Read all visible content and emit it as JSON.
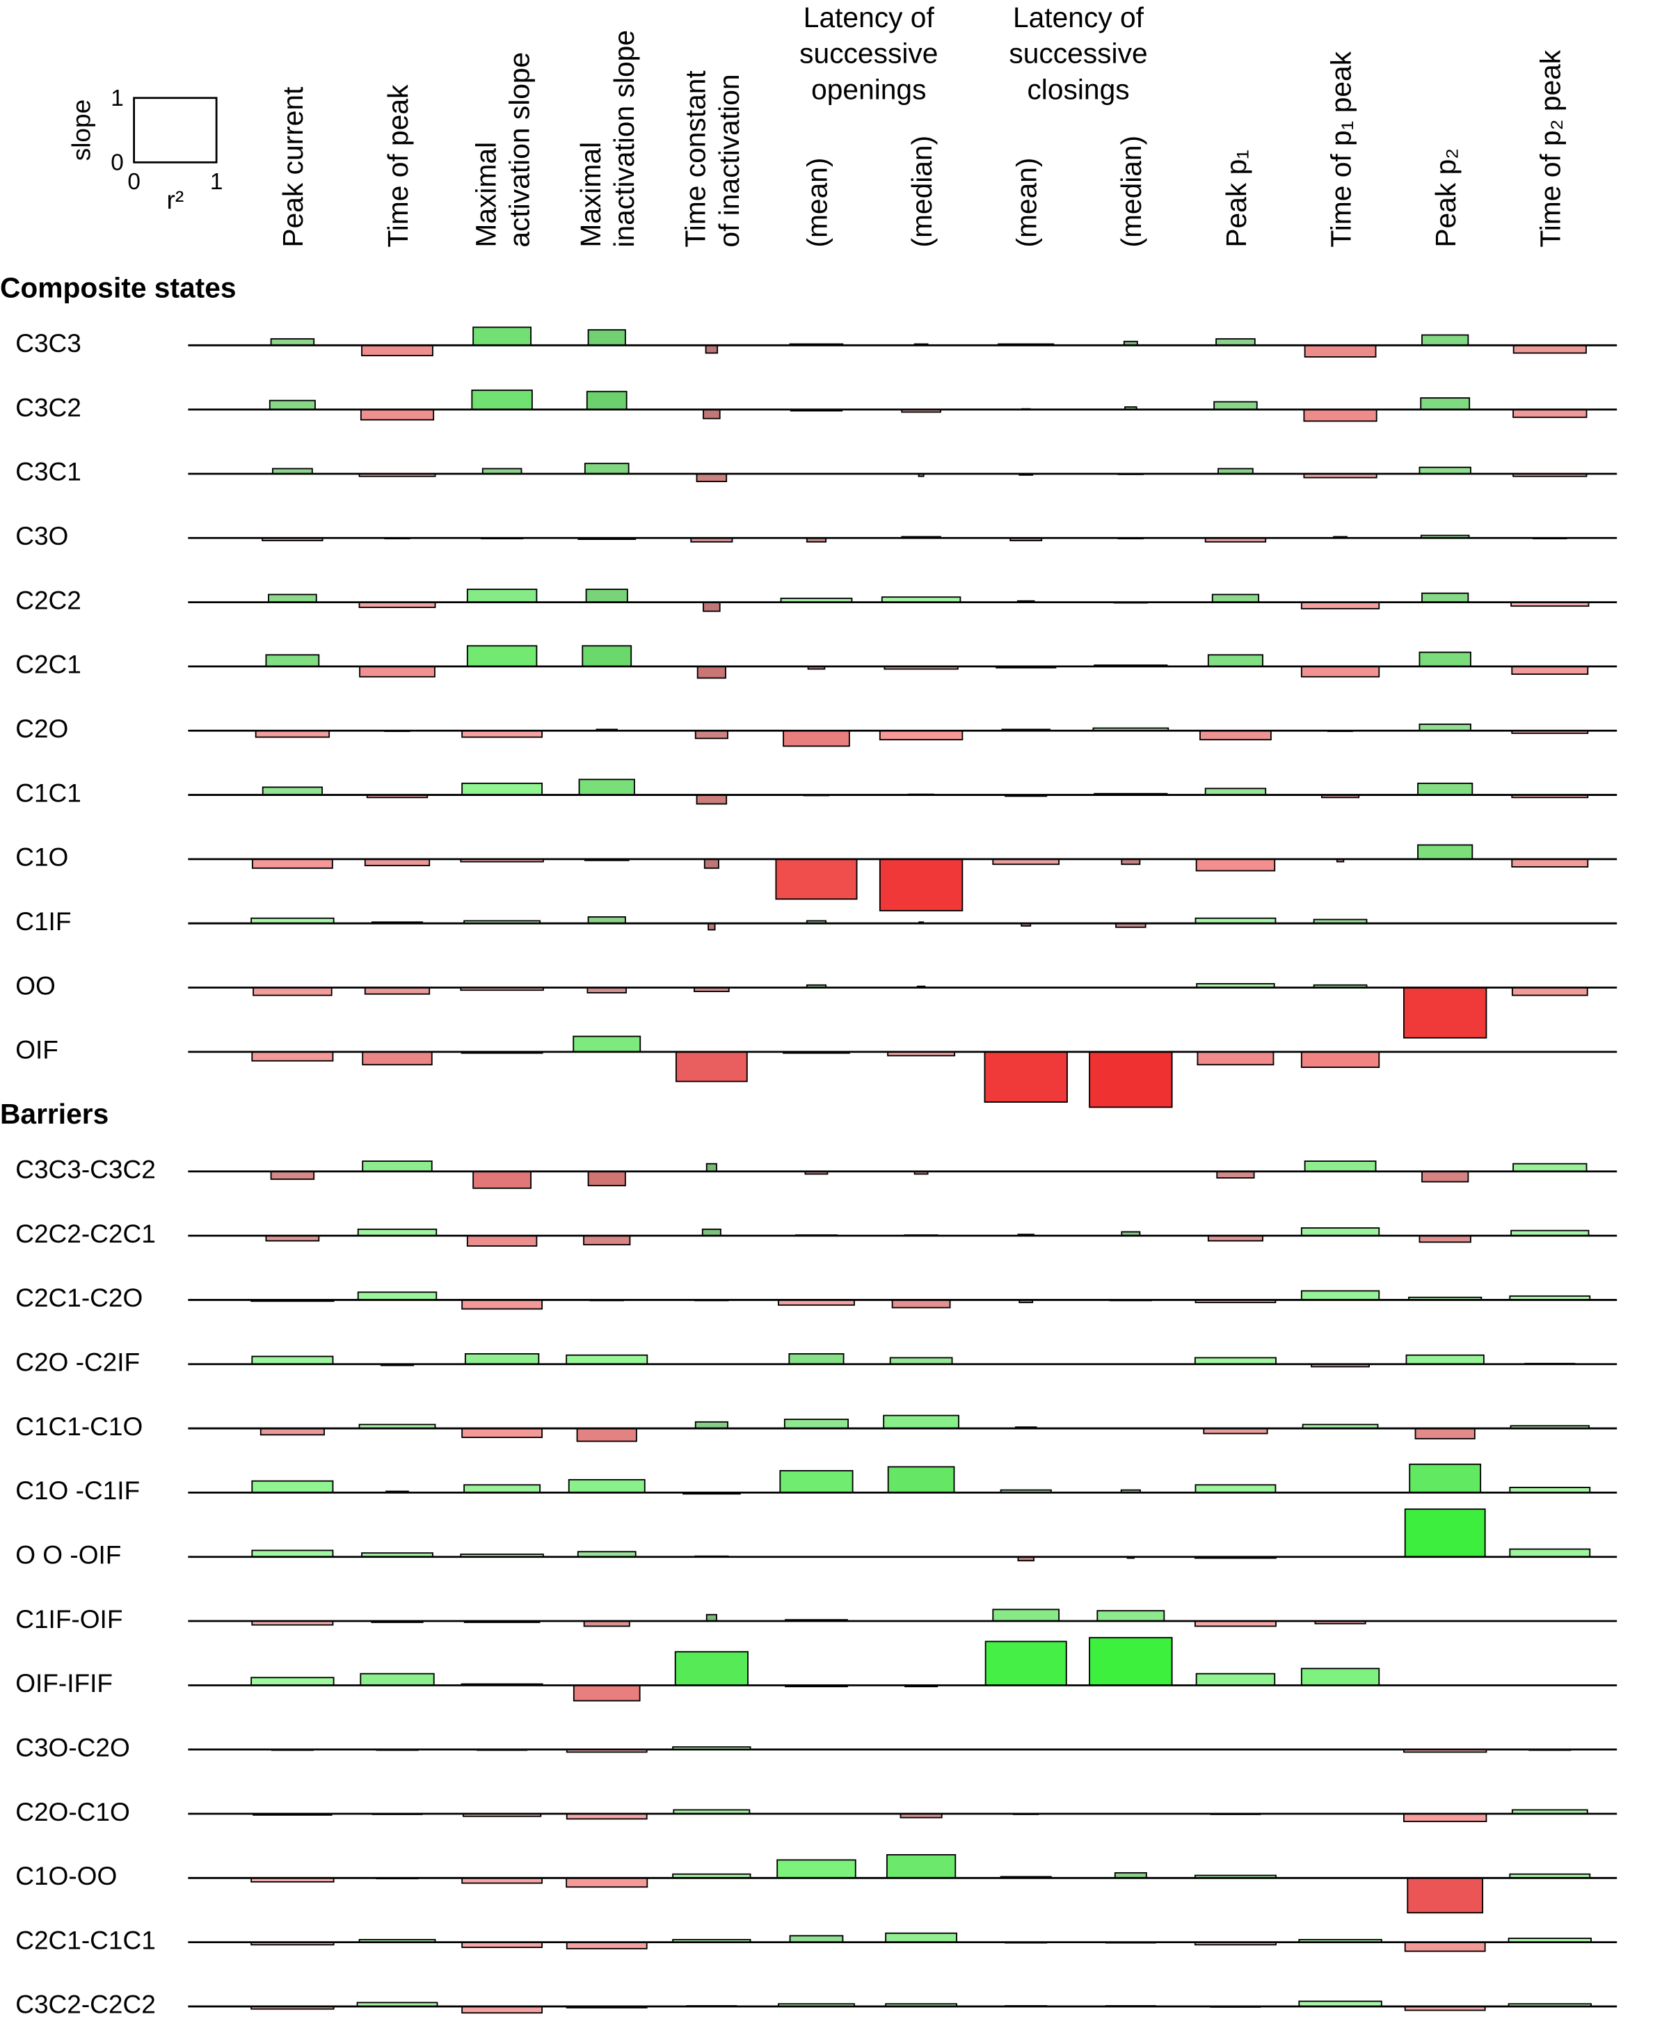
{
  "chart_data": {
    "type": "bar",
    "positive_color": "#22ee22",
    "negative_color": "#ee2222",
    "legend": {
      "x_label": "r²",
      "y_label": "slope",
      "xlim": [
        0,
        1
      ],
      "ylim": [
        0,
        1
      ],
      "xticks": [
        0,
        1
      ],
      "yticks": [
        0,
        1
      ]
    },
    "columns": [
      {
        "label": [
          "Peak current"
        ]
      },
      {
        "label": [
          "Time of peak"
        ]
      },
      {
        "label": [
          "Maximal",
          "activation slope"
        ]
      },
      {
        "label": [
          "Maximal",
          "inactivation slope"
        ]
      },
      {
        "label": [
          "Time constant",
          "of inactivation"
        ]
      },
      {
        "label": [
          "Latency of",
          "successive",
          "openings"
        ],
        "columns": [
          {
            "label": [
              "(mean)"
            ]
          },
          {
            "label": [
              "(median)"
            ]
          }
        ]
      },
      {
        "label": [
          "Latency of",
          "successive",
          "closings"
        ],
        "columns": [
          {
            "label": [
              "(mean)"
            ]
          },
          {
            "label": [
              "(median)"
            ]
          }
        ]
      },
      {
        "label": [
          "Peak p₁"
        ]
      },
      {
        "label": [
          "Time of p₁ peak"
        ]
      },
      {
        "label": [
          "Peak p₂"
        ]
      },
      {
        "label": [
          "Time of p₂ peak"
        ]
      }
    ],
    "sections": [
      {
        "title": "Composite states",
        "rows": [
          {
            "label": "C3C3",
            "slope": [
              0.1,
              -0.16,
              0.28,
              0.24,
              -0.12,
              0.02,
              0.02,
              0.02,
              0.06,
              0.1,
              -0.18,
              0.16,
              -0.12
            ],
            "r2": [
              0.52,
              0.86,
              0.7,
              0.45,
              0.14,
              0.64,
              0.16,
              0.67,
              0.16,
              0.47,
              0.86,
              0.56,
              0.88
            ]
          },
          {
            "label": "C3C2",
            "slope": [
              0.14,
              -0.16,
              0.3,
              0.28,
              -0.14,
              -0.02,
              -0.04,
              0.01,
              0.04,
              0.12,
              -0.18,
              0.18,
              -0.12
            ],
            "r2": [
              0.55,
              0.88,
              0.73,
              0.48,
              0.2,
              0.62,
              0.47,
              0.1,
              0.14,
              0.52,
              0.88,
              0.59,
              0.89
            ]
          },
          {
            "label": "C3C1",
            "slope": [
              0.08,
              -0.04,
              0.08,
              0.16,
              -0.12,
              0,
              -0.04,
              -0.02,
              -0.01,
              0.08,
              -0.06,
              0.1,
              -0.04
            ],
            "r2": [
              0.48,
              0.92,
              0.47,
              0.53,
              0.36,
              0.1,
              0.06,
              0.16,
              0.3,
              0.42,
              0.88,
              0.62,
              0.89
            ]
          },
          {
            "label": "C3O",
            "slope": [
              -0.04,
              -0.01,
              -0.01,
              -0.02,
              -0.06,
              -0.06,
              0.02,
              -0.04,
              -0.01,
              -0.06,
              0.02,
              0.04,
              -0.01
            ],
            "r2": [
              0.73,
              0.3,
              0.5,
              0.69,
              0.5,
              0.23,
              0.47,
              0.38,
              0.3,
              0.73,
              0.16,
              0.58,
              0.4
            ]
          },
          {
            "label": "C2C2",
            "slope": [
              0.12,
              -0.08,
              0.2,
              0.2,
              -0.14,
              0.06,
              0.08,
              0.02,
              -0.01,
              0.12,
              -0.1,
              0.14,
              -0.06
            ],
            "r2": [
              0.58,
              0.92,
              0.84,
              0.5,
              0.2,
              0.86,
              0.95,
              0.2,
              0.4,
              0.56,
              0.94,
              0.56,
              0.94
            ]
          },
          {
            "label": "C2C1",
            "slope": [
              0.18,
              -0.16,
              0.32,
              0.32,
              -0.18,
              -0.04,
              -0.04,
              -0.02,
              0.02,
              0.18,
              -0.16,
              0.22,
              -0.12
            ],
            "r2": [
              0.64,
              0.91,
              0.84,
              0.59,
              0.34,
              0.2,
              0.89,
              0.72,
              0.88,
              0.66,
              0.94,
              0.62,
              0.92
            ]
          },
          {
            "label": "C2O",
            "slope": [
              -0.1,
              -0.01,
              -0.1,
              0.02,
              -0.12,
              -0.24,
              -0.14,
              0.02,
              0.04,
              -0.14,
              -0.01,
              0.1,
              -0.04
            ],
            "r2": [
              0.89,
              0.3,
              0.97,
              0.25,
              0.39,
              0.8,
              1,
              0.58,
              0.91,
              0.86,
              0.3,
              0.62,
              0.92
            ]
          },
          {
            "label": "C1C1",
            "slope": [
              0.12,
              -0.04,
              0.18,
              0.24,
              -0.14,
              -0.01,
              0.01,
              -0.02,
              0.02,
              0.1,
              -0.04,
              0.18,
              -0.04
            ],
            "r2": [
              0.72,
              0.73,
              0.97,
              0.67,
              0.36,
              0.3,
              0.3,
              0.5,
              0.88,
              0.73,
              0.45,
              0.66,
              0.92
            ]
          },
          {
            "label": "C1O",
            "slope": [
              -0.14,
              -0.1,
              -0.04,
              -0.02,
              -0.14,
              -0.62,
              -0.8,
              -0.08,
              -0.08,
              -0.18,
              -0.04,
              0.22,
              -0.12
            ],
            "r2": [
              0.97,
              0.78,
              1,
              0.53,
              0.17,
              0.98,
              1,
              0.8,
              0.22,
              0.95,
              0.08,
              0.66,
              0.92
            ]
          },
          {
            "label": "C1IF",
            "slope": [
              0.08,
              0.02,
              0.04,
              0.1,
              -0.1,
              0.04,
              0.02,
              -0.04,
              -0.06,
              0.08,
              0.06,
              0,
              0
            ],
            "r2": [
              1,
              0.61,
              0.92,
              0.45,
              0.08,
              0.23,
              0.05,
              0.11,
              0.36,
              0.97,
              0.64,
              0.05,
              0.05
            ]
          },
          {
            "label": "OO",
            "slope": [
              -0.12,
              -0.1,
              -0.04,
              -0.08,
              -0.06,
              0.04,
              0.02,
              0,
              0,
              0.06,
              0.04,
              -0.78,
              -0.12
            ],
            "r2": [
              0.95,
              0.78,
              1,
              0.47,
              0.42,
              0.23,
              0.09,
              0.2,
              0.3,
              0.94,
              0.64,
              1,
              0.91
            ]
          },
          {
            "label": "OIF",
            "slope": [
              -0.14,
              -0.2,
              -0.02,
              0.24,
              -0.46,
              -0.02,
              -0.06,
              -0.78,
              -0.86,
              -0.2,
              -0.24,
              0,
              0
            ],
            "r2": [
              0.98,
              0.84,
              0.98,
              0.81,
              0.86,
              0.8,
              0.81,
              1,
              1,
              0.92,
              0.94,
              0.05,
              0.05
            ]
          }
        ]
      },
      {
        "title": "Barriers",
        "rows": [
          {
            "label": "C3C3-C3C2",
            "slope": [
              -0.12,
              0.16,
              -0.26,
              -0.22,
              0.12,
              -0.04,
              -0.04,
              0,
              0,
              -0.1,
              0.16,
              -0.16,
              0.12
            ],
            "r2": [
              0.52,
              0.84,
              0.7,
              0.45,
              0.12,
              0.27,
              0.16,
              0.1,
              0.1,
              0.45,
              0.86,
              0.56,
              0.89
            ]
          },
          {
            "label": "C2C2-C2C1",
            "slope": [
              -0.08,
              0.1,
              -0.16,
              -0.14,
              0.1,
              0.01,
              0.01,
              0.02,
              0.06,
              -0.08,
              0.12,
              -0.1,
              0.08
            ],
            "r2": [
              0.64,
              0.95,
              0.84,
              0.56,
              0.22,
              0.5,
              0.4,
              0.19,
              0.22,
              0.66,
              0.94,
              0.62,
              0.94
            ]
          },
          {
            "label": "C2C1-C2O",
            "slope": [
              -0.02,
              0.12,
              -0.14,
              -0.01,
              -0.01,
              -0.08,
              -0.12,
              -0.04,
              -0.01,
              -0.04,
              0.14,
              0.04,
              0.06
            ],
            "r2": [
              1,
              0.95,
              0.97,
              0.4,
              0.4,
              0.92,
              0.7,
              0.16,
              0.5,
              0.97,
              0.94,
              0.88,
              0.97
            ]
          },
          {
            "label": "C2O -C2IF",
            "slope": [
              0.12,
              -0.02,
              0.16,
              0.14,
              0,
              0.16,
              0.1,
              0,
              0,
              0.1,
              -0.04,
              0.14,
              0.01
            ],
            "r2": [
              0.98,
              0.39,
              0.89,
              0.98,
              0.3,
              0.66,
              0.75,
              0.2,
              0.3,
              0.98,
              0.7,
              0.94,
              0.6
            ]
          },
          {
            "label": "C1C1-C1O",
            "slope": [
              -0.1,
              0.06,
              -0.14,
              -0.2,
              0.1,
              0.14,
              0.2,
              0.02,
              0,
              -0.08,
              0.06,
              -0.16,
              0.04
            ],
            "r2": [
              0.77,
              0.92,
              0.97,
              0.72,
              0.39,
              0.77,
              0.91,
              0.25,
              0.3,
              0.77,
              0.91,
              0.72,
              0.95
            ]
          },
          {
            "label": "C1O -C1IF",
            "slope": [
              0.18,
              0.02,
              0.12,
              0.2,
              -0.02,
              0.34,
              0.4,
              0.04,
              0.04,
              0.12,
              0,
              0.44,
              0.08
            ],
            "r2": [
              0.98,
              0.27,
              0.92,
              0.92,
              0.69,
              0.88,
              0.8,
              0.61,
              0.23,
              0.97,
              0.05,
              0.86,
              0.97
            ]
          },
          {
            "label": "O O -OIF",
            "slope": [
              0.1,
              0.06,
              0.04,
              0.08,
              0.01,
              0,
              0,
              -0.06,
              -0.02,
              -0.02,
              0,
              0.74,
              0.12
            ],
            "r2": [
              0.98,
              0.86,
              1,
              0.7,
              0.4,
              0.05,
              0.05,
              0.19,
              0.08,
              0.98,
              0.05,
              0.97,
              0.97
            ]
          },
          {
            "label": "C1IF-OIF",
            "slope": [
              -0.06,
              -0.02,
              -0.02,
              -0.08,
              0.1,
              0.02,
              0,
              0.18,
              0.16,
              -0.08,
              -0.04,
              0,
              0
            ],
            "r2": [
              0.98,
              0.62,
              0.91,
              0.55,
              0.12,
              0.75,
              0.05,
              0.8,
              0.81,
              0.98,
              0.61,
              0.05,
              0.05
            ]
          },
          {
            "label": "OIF-IFIF",
            "slope": [
              0.12,
              0.18,
              0.02,
              -0.24,
              0.52,
              -0.02,
              -0.02,
              0.68,
              0.74,
              0.18,
              0.26,
              0,
              0
            ],
            "r2": [
              1,
              0.89,
              0.98,
              0.8,
              0.88,
              0.75,
              0.39,
              0.98,
              1,
              0.95,
              0.94,
              0.05,
              0.05
            ]
          },
          {
            "label": "C3O-C2O",
            "slope": [
              -0.01,
              -0.01,
              -0.01,
              -0.04,
              0.04,
              0,
              0,
              0,
              0,
              0,
              0,
              -0.04,
              -0.01
            ],
            "r2": [
              0.5,
              0.5,
              0.6,
              0.97,
              0.94,
              0.3,
              0.3,
              0.3,
              0.3,
              0.3,
              0.3,
              1,
              0.5
            ]
          },
          {
            "label": "C2O-C1O",
            "slope": [
              -0.02,
              -0.01,
              -0.04,
              -0.08,
              0.06,
              0,
              -0.06,
              -0.01,
              0,
              -0.01,
              0,
              -0.12,
              0.06
            ],
            "r2": [
              0.95,
              0.6,
              0.94,
              0.97,
              0.92,
              0.3,
              0.5,
              0.3,
              0.1,
              0.6,
              0.05,
              1,
              0.91
            ]
          },
          {
            "label": "C1O-OO",
            "slope": [
              -0.06,
              -0.01,
              -0.08,
              -0.14,
              0.06,
              0.28,
              0.36,
              0.02,
              0.08,
              0.04,
              0,
              -0.54,
              0.06
            ],
            "r2": [
              1,
              0.5,
              0.97,
              0.98,
              0.94,
              0.95,
              0.83,
              0.61,
              0.38,
              0.98,
              0.05,
              0.91,
              0.97
            ]
          },
          {
            "label": "C2C1-C1C1",
            "slope": [
              -0.04,
              0.04,
              -0.08,
              -0.1,
              0.04,
              0.1,
              0.14,
              -0.01,
              -0.01,
              -0.04,
              0.04,
              -0.14,
              0.06
            ],
            "r2": [
              1,
              0.92,
              0.97,
              0.97,
              0.94,
              0.64,
              0.86,
              0.5,
              0.6,
              0.98,
              1,
              0.97,
              1
            ]
          },
          {
            "label": "C3C2-C2C2",
            "slope": [
              -0.04,
              0.06,
              -0.1,
              -0.02,
              0.01,
              0.04,
              0.04,
              0.01,
              0.01,
              -0.01,
              0.08,
              -0.06,
              0.04
            ],
            "r2": [
              1,
              0.97,
              0.97,
              0.97,
              0.6,
              0.92,
              0.86,
              0.5,
              0.6,
              0.6,
              1,
              0.97,
              1
            ]
          }
        ]
      }
    ]
  }
}
